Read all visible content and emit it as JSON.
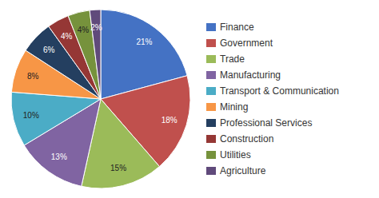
{
  "chart_data": {
    "type": "pie",
    "categories": [
      "Finance",
      "Government",
      "Trade",
      "Manufacturing",
      "Transport & Communication",
      "Mining",
      "Professional Services",
      "Construction",
      "Utilities",
      "Agriculture"
    ],
    "values": [
      21,
      18,
      15,
      13,
      10,
      8,
      6,
      4,
      4,
      2
    ],
    "value_labels": [
      "21%",
      "18%",
      "15%",
      "13%",
      "10%",
      "8%",
      "6%",
      "4%",
      "4%",
      "2%"
    ],
    "colors": [
      "#4472C4",
      "#C0504D",
      "#9BBB59",
      "#8064A2",
      "#4BACC6",
      "#F79646",
      "#243F60",
      "#953735",
      "#76923C",
      "#604A7B"
    ],
    "data_labels": true,
    "legend": "right"
  }
}
